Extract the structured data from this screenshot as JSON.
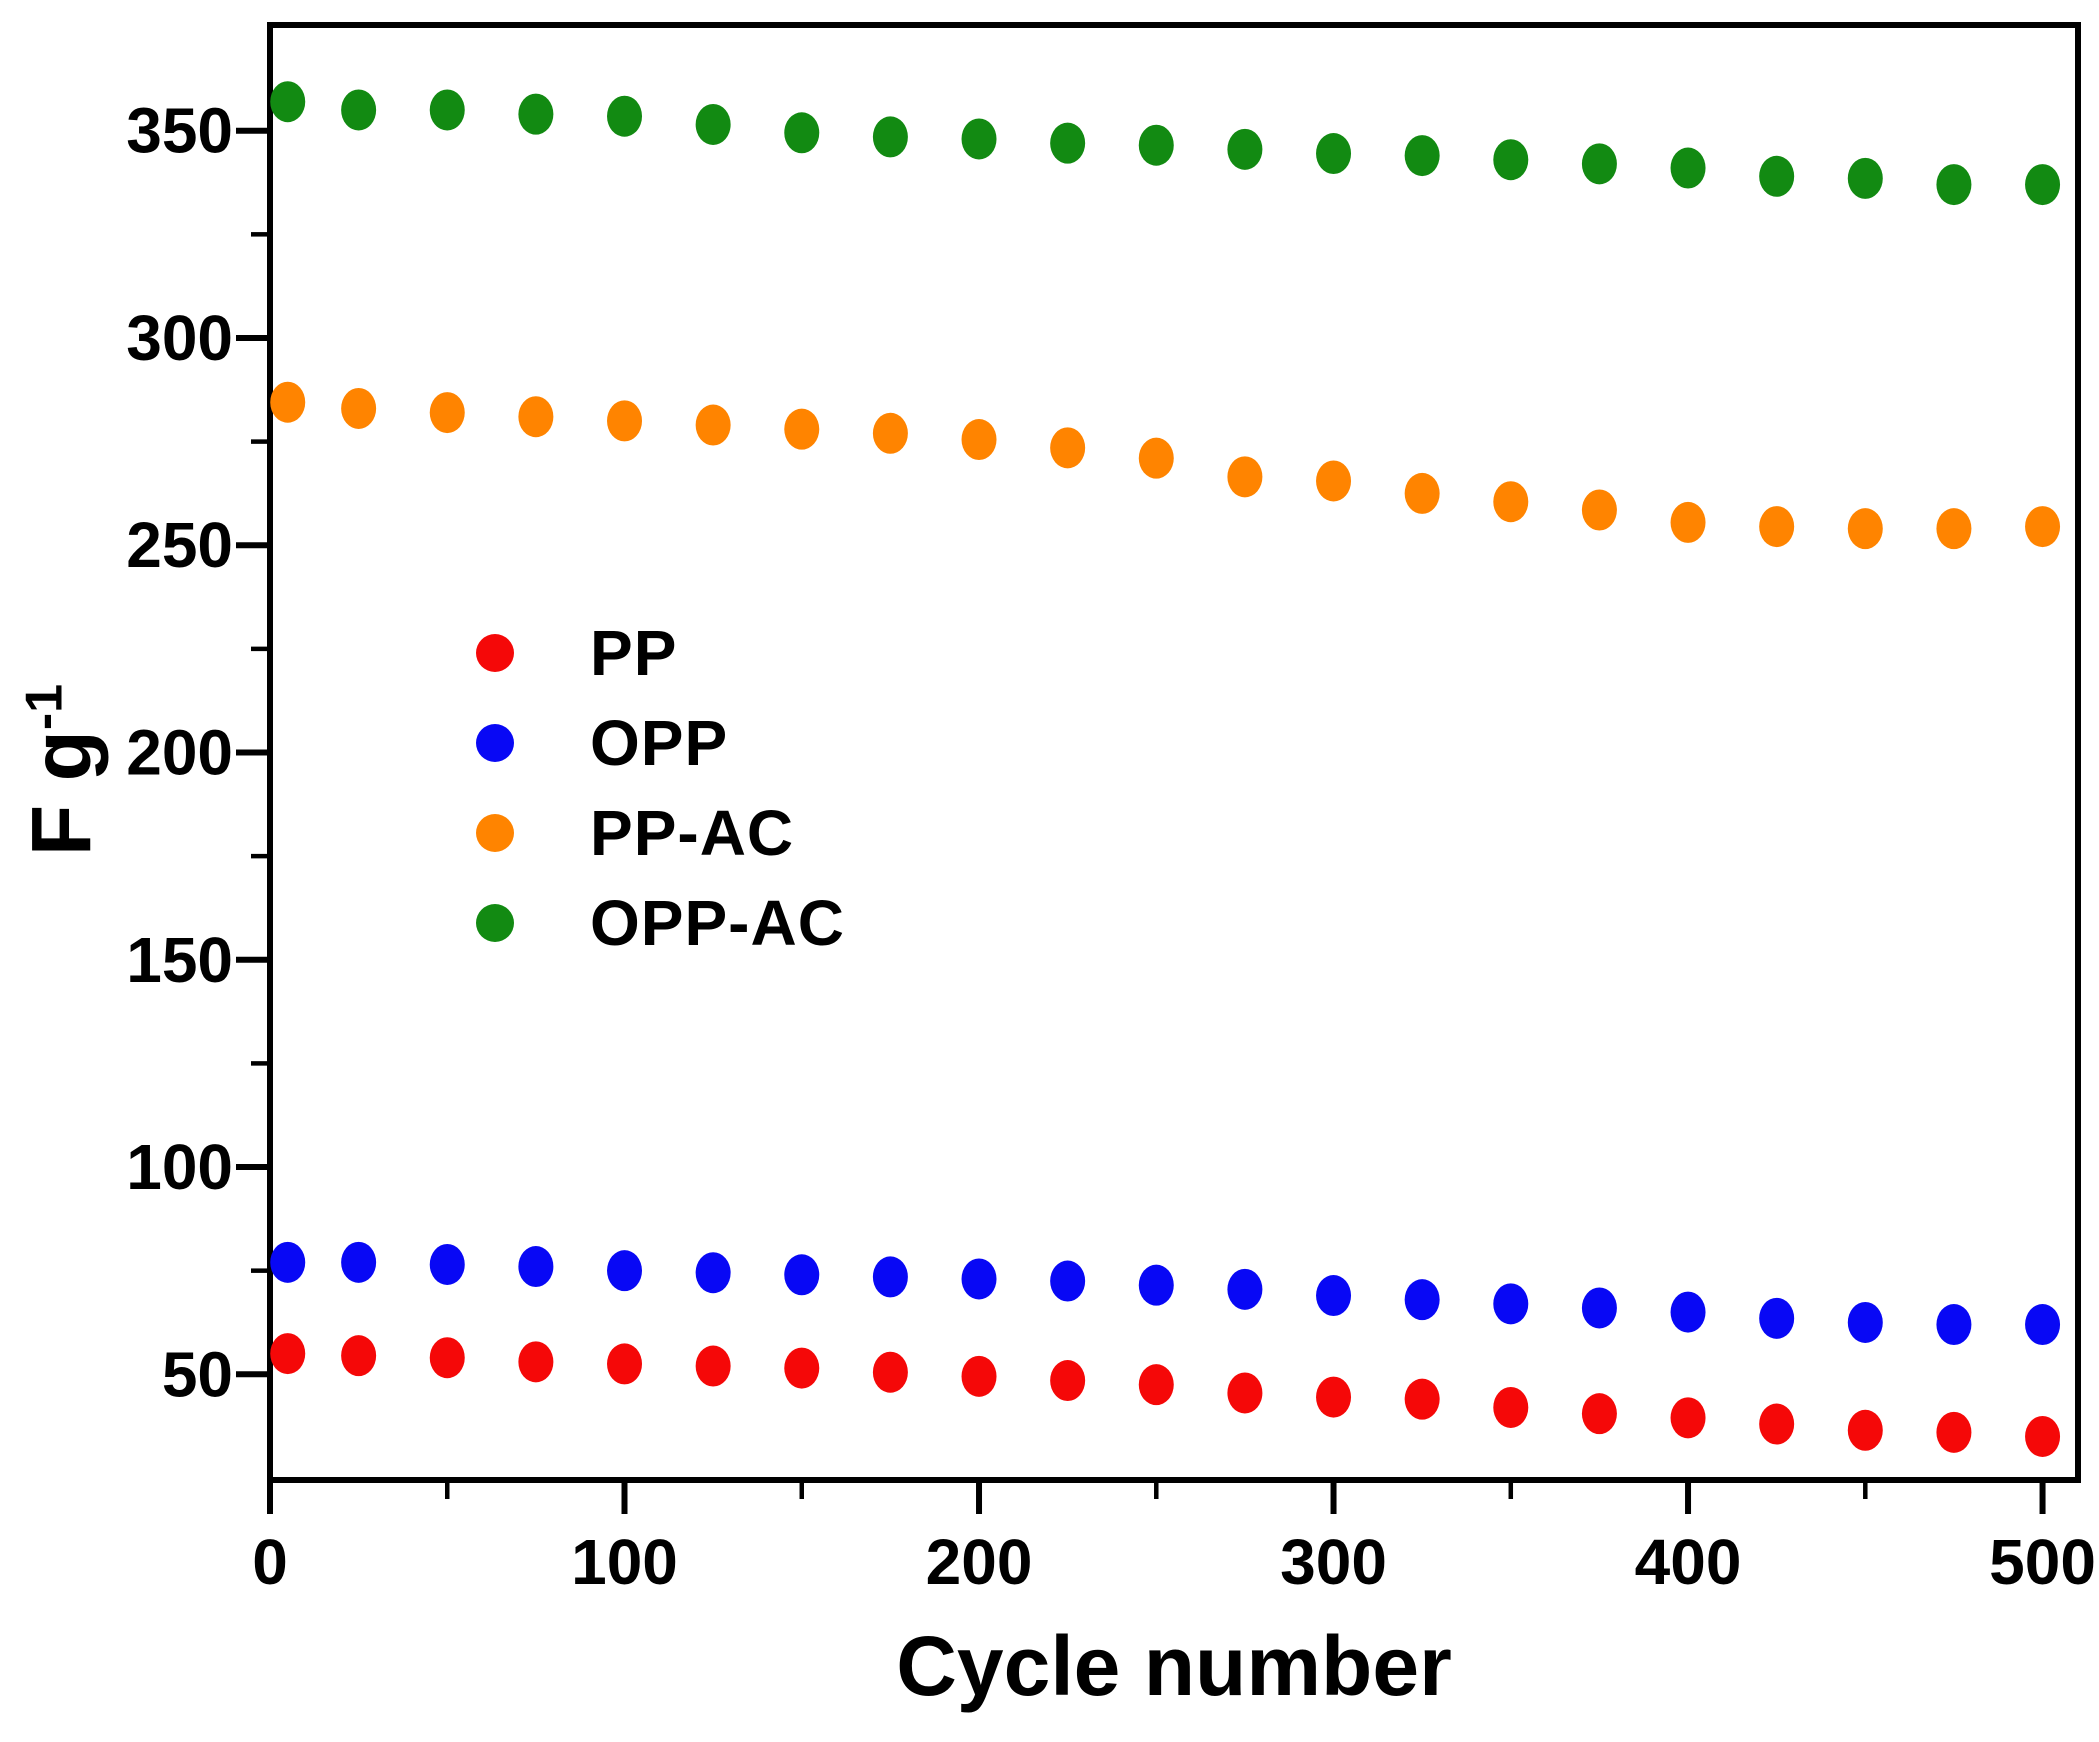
{
  "figure": {
    "background": "#ffffff",
    "axis_color": "#000000"
  },
  "chart_data": {
    "type": "scatter",
    "title": "",
    "xlabel": "Cycle number",
    "ylabel_base": "F g",
    "ylabel_exponent": "-1",
    "xlim": [
      0,
      510
    ],
    "ylim": [
      24.5,
      375.5
    ],
    "grid": false,
    "legend_position": "center-left",
    "x_major_ticks": [
      0,
      100,
      200,
      300,
      400,
      500
    ],
    "x_minor_ticks": [
      50,
      150,
      250,
      350,
      450
    ],
    "y_major_ticks": [
      50,
      100,
      150,
      200,
      250,
      300,
      350
    ],
    "y_minor_ticks": [
      75,
      125,
      175,
      225,
      275,
      325
    ],
    "x": [
      5,
      25,
      50,
      75,
      100,
      125,
      150,
      175,
      200,
      225,
      250,
      275,
      300,
      325,
      350,
      375,
      400,
      425,
      450,
      475,
      500
    ],
    "series": [
      {
        "name": "PP",
        "color": "#f50808",
        "values": [
          55,
          54.5,
          54,
          53,
          52.5,
          52,
          51.5,
          50.5,
          49.5,
          48.5,
          47.5,
          45.5,
          44.5,
          44,
          42,
          40.5,
          39.5,
          38,
          36.5,
          36,
          35
        ]
      },
      {
        "name": "OPP",
        "color": "#0808f5",
        "values": [
          77,
          77,
          76.5,
          76,
          75,
          74.5,
          74,
          73.5,
          73,
          72.5,
          71.5,
          70.5,
          69,
          68,
          67,
          66,
          65,
          63.5,
          62.5,
          62,
          62
        ]
      },
      {
        "name": "PP-AC",
        "color": "#ff8400",
        "values": [
          284.5,
          283,
          282,
          281,
          280,
          279,
          278,
          277,
          275.5,
          273.5,
          271,
          266.5,
          265.5,
          262.5,
          260.5,
          258.5,
          255.5,
          254.5,
          254,
          254,
          254.5
        ]
      },
      {
        "name": "OPP-AC",
        "color": "#128a12",
        "values": [
          357,
          355,
          355,
          354,
          353.5,
          351.5,
          349.5,
          348.5,
          348,
          347,
          346.5,
          345.5,
          344.5,
          344,
          343,
          342,
          341,
          339,
          338.5,
          337,
          337
        ]
      }
    ]
  }
}
